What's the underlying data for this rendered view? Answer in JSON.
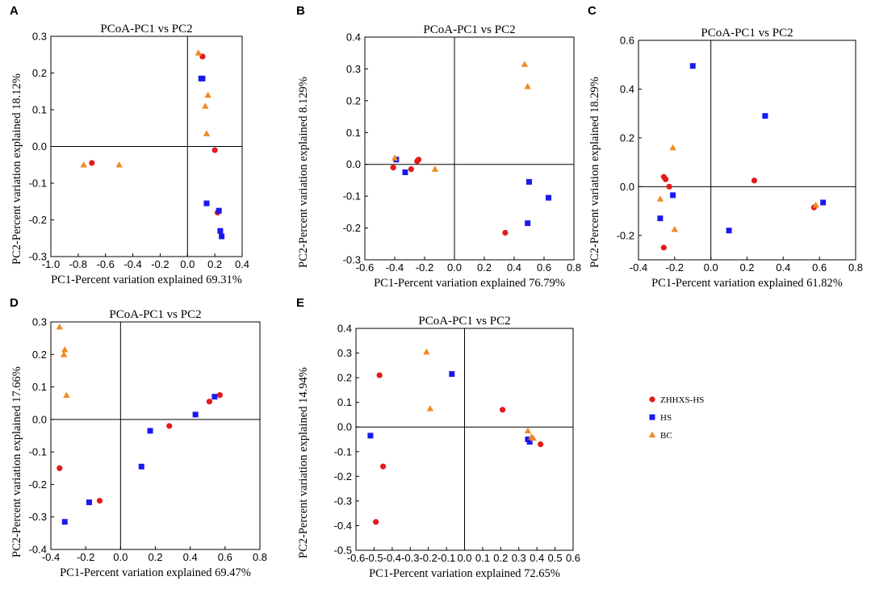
{
  "legend": [
    {
      "name": "ZHHXS-HS",
      "color": "#e41a1c",
      "marker": "circle"
    },
    {
      "name": "HS",
      "color": "#1a1aee",
      "marker": "square"
    },
    {
      "name": "BC",
      "color": "#f08a24",
      "marker": "triangle"
    }
  ],
  "chart_data": [
    {
      "type": "scatter",
      "panel": "A",
      "title": "PCoA-PC1  vs  PC2",
      "xlabel": "PC1-Percent variation explained 69.31%",
      "ylabel": "PC2-Percent variation explained 18.12%",
      "xlim": [
        -1.0,
        0.4
      ],
      "ylim": [
        -0.3,
        0.3
      ],
      "xticks": [
        "-1.0",
        "-0.8",
        "-0.6",
        "-0.4",
        "-0.2",
        "0.0",
        "0.2",
        "0.4"
      ],
      "yticks": [
        "-0.3",
        "-0.2",
        "-0.1",
        "0.0",
        "0.1",
        "0.2",
        "0.3"
      ],
      "series": [
        {
          "name": "ZHHXS-HS",
          "points": [
            [
              0.11,
              0.245
            ],
            [
              0.2,
              -0.01
            ],
            [
              0.22,
              -0.18
            ],
            [
              -0.7,
              -0.045
            ]
          ]
        },
        {
          "name": "HS",
          "points": [
            [
              0.1,
              0.185
            ],
            [
              0.11,
              0.185
            ],
            [
              0.14,
              -0.155
            ],
            [
              0.23,
              -0.175
            ],
            [
              0.24,
              -0.23
            ],
            [
              0.25,
              -0.245
            ]
          ]
        },
        {
          "name": "BC",
          "points": [
            [
              0.08,
              0.255
            ],
            [
              0.15,
              0.14
            ],
            [
              0.13,
              0.11
            ],
            [
              0.14,
              0.035
            ],
            [
              -0.76,
              -0.05
            ],
            [
              -0.5,
              -0.05
            ]
          ]
        }
      ]
    },
    {
      "type": "scatter",
      "panel": "B",
      "title": "PCoA-PC1  vs  PC2",
      "xlabel": "PC1-Percent variation explained 76.79%",
      "ylabel": "PC2-Percent variation explained 8.129%",
      "xlim": [
        -0.6,
        0.8
      ],
      "ylim": [
        -0.3,
        0.4
      ],
      "xticks": [
        "-0.6",
        "-0.4",
        "-0.2",
        "0.0",
        "0.2",
        "0.4",
        "0.6",
        "0.8"
      ],
      "yticks": [
        "-0.3",
        "-0.2",
        "-0.1",
        "0.0",
        "0.1",
        "0.2",
        "0.3",
        "0.4"
      ],
      "series": [
        {
          "name": "ZHHXS-HS",
          "points": [
            [
              -0.41,
              -0.01
            ],
            [
              -0.29,
              -0.015
            ],
            [
              -0.25,
              0.01
            ],
            [
              -0.24,
              0.015
            ],
            [
              0.34,
              -0.215
            ]
          ]
        },
        {
          "name": "HS",
          "points": [
            [
              -0.39,
              0.015
            ],
            [
              -0.33,
              -0.025
            ],
            [
              0.5,
              -0.055
            ],
            [
              0.63,
              -0.105
            ],
            [
              0.49,
              -0.185
            ]
          ]
        },
        {
          "name": "BC",
          "points": [
            [
              -0.4,
              0.02
            ],
            [
              -0.13,
              -0.015
            ],
            [
              0.47,
              0.315
            ],
            [
              0.49,
              0.245
            ]
          ]
        }
      ]
    },
    {
      "type": "scatter",
      "panel": "C",
      "title": "PCoA-PC1  vs  PC2",
      "xlabel": "PC1-Percent variation explained 61.82%",
      "ylabel": "PC2-Percent variation explained 18.29%",
      "xlim": [
        -0.4,
        0.8
      ],
      "ylim": [
        -0.3,
        0.6
      ],
      "xticks": [
        "-0.4",
        "-0.2",
        "0.0",
        "0.2",
        "0.4",
        "0.6",
        "0.8"
      ],
      "yticks": [
        "-0.2",
        "0.0",
        "0.2",
        "0.4",
        "0.6"
      ],
      "series": [
        {
          "name": "ZHHXS-HS",
          "points": [
            [
              -0.26,
              0.04
            ],
            [
              -0.25,
              0.03
            ],
            [
              -0.23,
              0.0
            ],
            [
              -0.26,
              -0.25
            ],
            [
              0.24,
              0.025
            ],
            [
              0.57,
              -0.085
            ]
          ]
        },
        {
          "name": "HS",
          "points": [
            [
              -0.1,
              0.495
            ],
            [
              0.3,
              0.29
            ],
            [
              -0.21,
              -0.035
            ],
            [
              -0.28,
              -0.13
            ],
            [
              0.1,
              -0.18
            ],
            [
              0.62,
              -0.065
            ]
          ]
        },
        {
          "name": "BC",
          "points": [
            [
              -0.21,
              0.16
            ],
            [
              -0.28,
              -0.05
            ],
            [
              -0.2,
              -0.175
            ],
            [
              0.58,
              -0.075
            ]
          ]
        }
      ]
    },
    {
      "type": "scatter",
      "panel": "D",
      "title": "PCoA-PC1  vs  PC2",
      "xlabel": "PC1-Percent variation explained 69.47%",
      "ylabel": "PC2-Percent variation explained 17.66%",
      "xlim": [
        -0.4,
        0.8
      ],
      "ylim": [
        -0.4,
        0.3
      ],
      "xticks": [
        "-0.4",
        "-0.2",
        "0.0",
        "0.2",
        "0.4",
        "0.6",
        "0.8"
      ],
      "yticks": [
        "-0.4",
        "-0.3",
        "-0.2",
        "-0.1",
        "0.0",
        "0.1",
        "0.2",
        "0.3"
      ],
      "series": [
        {
          "name": "ZHHXS-HS",
          "points": [
            [
              -0.35,
              -0.15
            ],
            [
              -0.12,
              -0.25
            ],
            [
              0.28,
              -0.02
            ],
            [
              0.51,
              0.055
            ],
            [
              0.57,
              0.075
            ]
          ]
        },
        {
          "name": "HS",
          "points": [
            [
              -0.32,
              -0.315
            ],
            [
              -0.18,
              -0.255
            ],
            [
              0.12,
              -0.145
            ],
            [
              0.17,
              -0.035
            ],
            [
              0.43,
              0.015
            ],
            [
              0.54,
              0.07
            ]
          ]
        },
        {
          "name": "BC",
          "points": [
            [
              -0.35,
              0.285
            ],
            [
              -0.32,
              0.215
            ],
            [
              -0.325,
              0.2
            ],
            [
              -0.31,
              0.075
            ]
          ]
        }
      ]
    },
    {
      "type": "scatter",
      "panel": "E",
      "title": "PCoA-PC1  vs  PC2",
      "xlabel": "PC1-Percent variation explained 72.65%",
      "ylabel": "PC2-Percent variation explained 14.94%",
      "xlim": [
        -0.6,
        0.6
      ],
      "ylim": [
        -0.5,
        0.4
      ],
      "xticks": [
        "-0.6",
        "-0.5",
        "-0.4",
        "-0.3",
        "-0.2",
        "-0.1",
        "0.0",
        "0.1",
        "0.2",
        "0.3",
        "0.4",
        "0.5",
        "0.6"
      ],
      "yticks": [
        "-0.5",
        "-0.4",
        "-0.3",
        "-0.2",
        "-0.1",
        "0.0",
        "0.1",
        "0.2",
        "0.3",
        "0.4"
      ],
      "series": [
        {
          "name": "ZHHXS-HS",
          "points": [
            [
              -0.47,
              0.21
            ],
            [
              -0.45,
              -0.16
            ],
            [
              -0.49,
              -0.385
            ],
            [
              0.21,
              0.07
            ],
            [
              0.42,
              -0.07
            ]
          ]
        },
        {
          "name": "HS",
          "points": [
            [
              -0.52,
              -0.035
            ],
            [
              -0.07,
              0.215
            ],
            [
              0.35,
              -0.05
            ],
            [
              0.36,
              -0.06
            ]
          ]
        },
        {
          "name": "BC",
          "points": [
            [
              -0.21,
              0.305
            ],
            [
              -0.19,
              0.075
            ],
            [
              0.35,
              -0.015
            ],
            [
              0.37,
              -0.04
            ],
            [
              0.38,
              -0.045
            ]
          ]
        }
      ]
    }
  ]
}
